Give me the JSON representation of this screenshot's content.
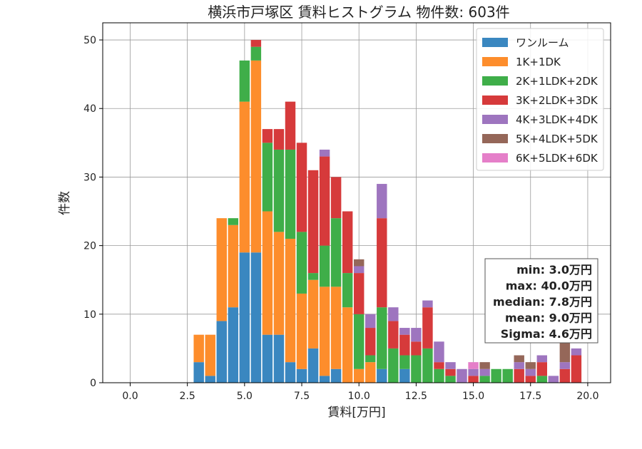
{
  "chart_data": {
    "type": "bar",
    "stacked": true,
    "title": "横浜市戸塚区 賃料ヒストグラム 物件数: 603件",
    "xlabel": "賃料[万円]",
    "ylabel": "件数",
    "xlim": [
      -1.2,
      21.0
    ],
    "ylim": [
      0,
      52.5
    ],
    "bin_width": 0.5,
    "grid": true,
    "xticks": [
      0.0,
      2.5,
      5.0,
      7.5,
      10.0,
      12.5,
      15.0,
      17.5,
      20.0
    ],
    "xtick_labels": [
      "0.0",
      "2.5",
      "5.0",
      "7.5",
      "10.0",
      "12.5",
      "15.0",
      "17.5",
      "20.0"
    ],
    "yticks": [
      0,
      10,
      20,
      30,
      40,
      50
    ],
    "ytick_labels": [
      "0",
      "10",
      "20",
      "30",
      "40",
      "50"
    ],
    "legend_position": "top-right",
    "bins": [
      3.0,
      3.5,
      4.0,
      4.5,
      5.0,
      5.5,
      6.0,
      6.5,
      7.0,
      7.5,
      8.0,
      8.5,
      9.0,
      9.5,
      10.0,
      10.5,
      11.0,
      11.5,
      12.0,
      12.5,
      13.0,
      13.5,
      14.0,
      14.5,
      15.0,
      15.5,
      16.0,
      16.5,
      17.0,
      17.5,
      18.0,
      18.5,
      19.0,
      19.5
    ],
    "series": [
      {
        "name": "ワンルーム",
        "color": "#3a87c0",
        "values": [
          3,
          1,
          9,
          11,
          19,
          19,
          7,
          7,
          3,
          2,
          5,
          1,
          2,
          0,
          0,
          0,
          2,
          0,
          2,
          0,
          0,
          0,
          0,
          0,
          0,
          0,
          0,
          0,
          0,
          0,
          0,
          0,
          0,
          0
        ]
      },
      {
        "name": "1K+1DK",
        "color": "#fd8d2c",
        "values": [
          4,
          6,
          15,
          12,
          22,
          28,
          18,
          15,
          18,
          11,
          10,
          13,
          12,
          11,
          2,
          3,
          0,
          0,
          0,
          0,
          0,
          0,
          0,
          0,
          0,
          0,
          0,
          0,
          0,
          0,
          0,
          0,
          0,
          0
        ]
      },
      {
        "name": "2K+1LDK+2DK",
        "color": "#3fae49",
        "values": [
          0,
          0,
          0,
          1,
          6,
          2,
          10,
          12,
          13,
          9,
          1,
          6,
          10,
          5,
          8,
          1,
          9,
          5,
          2,
          4,
          5,
          2,
          1,
          0,
          0,
          1,
          2,
          2,
          0,
          0,
          1,
          0,
          0,
          0
        ]
      },
      {
        "name": "3K+2LDK+3DK",
        "color": "#d63a3b",
        "values": [
          0,
          0,
          0,
          0,
          0,
          1,
          2,
          3,
          7,
          13,
          15,
          13,
          6,
          9,
          6,
          4,
          13,
          4,
          3,
          2,
          6,
          1,
          1,
          0,
          1,
          0,
          0,
          0,
          2,
          1,
          2,
          0,
          2,
          4
        ]
      },
      {
        "name": "4K+3LDK+4DK",
        "color": "#9e75bf",
        "values": [
          0,
          0,
          0,
          0,
          0,
          0,
          0,
          0,
          0,
          0,
          0,
          1,
          0,
          0,
          1,
          2,
          5,
          2,
          1,
          2,
          1,
          3,
          1,
          2,
          1,
          1,
          0,
          0,
          1,
          1,
          1,
          1,
          1,
          1
        ]
      },
      {
        "name": "5K+4LDK+5DK",
        "color": "#956759",
        "values": [
          0,
          0,
          0,
          0,
          0,
          0,
          0,
          0,
          0,
          0,
          0,
          0,
          0,
          0,
          1,
          0,
          0,
          0,
          0,
          0,
          0,
          0,
          0,
          0,
          0,
          1,
          0,
          0,
          1,
          1,
          0,
          0,
          3,
          0
        ]
      },
      {
        "name": "6K+5LDK+6DK",
        "color": "#e57fc9",
        "values": [
          0,
          0,
          0,
          0,
          0,
          0,
          0,
          0,
          0,
          0,
          0,
          0,
          0,
          0,
          0,
          0,
          0,
          0,
          0,
          0,
          0,
          0,
          0,
          0,
          1,
          0,
          0,
          0,
          0,
          0,
          0,
          0,
          0,
          0
        ]
      }
    ],
    "stats": [
      "min: 3.0万円",
      "max: 40.0万円",
      "median: 7.8万円",
      "mean: 9.0万円",
      "Sigma: 4.6万円"
    ]
  }
}
